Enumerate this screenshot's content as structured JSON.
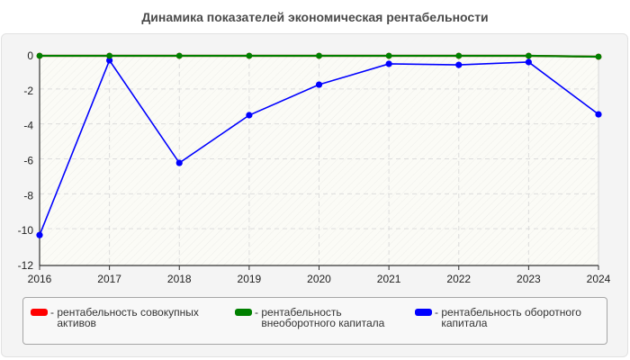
{
  "title": "Динамика показателей экономическая рентабельности",
  "legend": [
    {
      "label": "рентабельность совокупных активов",
      "color": "#ff0000"
    },
    {
      "label": "рентабельность внеоборотного капитала",
      "color": "#008000"
    },
    {
      "label": "рентабельность оборотного капитала",
      "color": "#0000ff"
    }
  ],
  "chart_data": {
    "type": "line",
    "title": "Динамика показателей экономическая рентабельности",
    "xlabel": "",
    "ylabel": "",
    "x": [
      "2016",
      "2017",
      "2018",
      "2019",
      "2020",
      "2021",
      "2022",
      "2023",
      "2024"
    ],
    "ylim": [
      -12,
      0
    ],
    "yticks": [
      0,
      -2,
      -4,
      -6,
      -8,
      -10,
      -12
    ],
    "grid": true,
    "legend_position": "bottom",
    "series": [
      {
        "name": "рентабельность совокупных активов",
        "color": "#ff0000",
        "values": [
          0,
          0,
          0,
          0,
          0,
          0,
          0,
          0,
          -0.05
        ]
      },
      {
        "name": "рентабельность внеоборотного капитала",
        "color": "#008000",
        "values": [
          0,
          0,
          0,
          0,
          0,
          0,
          0,
          0,
          -0.05
        ]
      },
      {
        "name": "рентабельность оборотного капитала",
        "color": "#0000ff",
        "values": [
          -10.26,
          -0.26,
          -6.13,
          -3.4,
          -1.65,
          -0.46,
          -0.52,
          -0.36,
          -3.35
        ]
      }
    ]
  }
}
